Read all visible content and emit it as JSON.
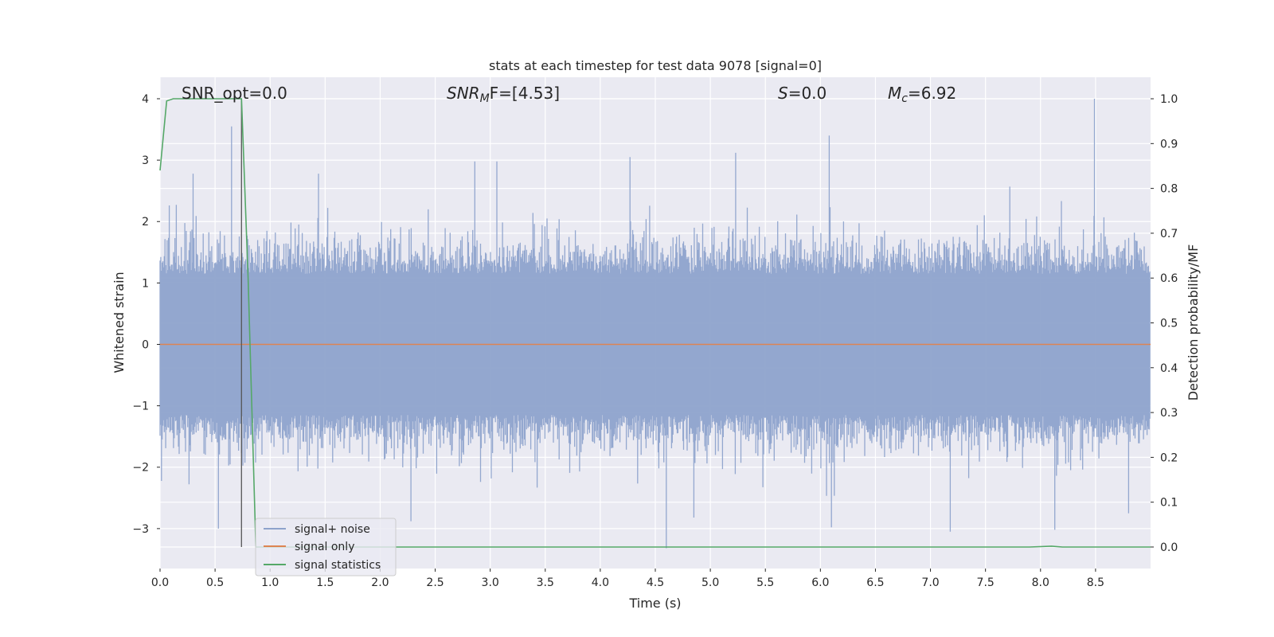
{
  "chart_data": {
    "type": "line",
    "title": "stats at each timestep for test data 9078 [signal=0]",
    "xlabel": "Time (s)",
    "ylabel": "Whitened strain",
    "y2label": "Detection probability/MF",
    "xlim": [
      0.0,
      9.0
    ],
    "ylim": [
      -3.65,
      4.35
    ],
    "y2lim": [
      -0.048,
      1.048
    ],
    "xticks": [
      "0.0",
      "0.5",
      "1.0",
      "1.5",
      "2.0",
      "2.5",
      "3.0",
      "3.5",
      "4.0",
      "4.5",
      "5.0",
      "5.5",
      "6.0",
      "6.5",
      "7.0",
      "7.5",
      "8.0",
      "8.5"
    ],
    "yticks": [
      "−3",
      "−2",
      "−1",
      "0",
      "1",
      "2",
      "3",
      "4"
    ],
    "y2ticks": [
      "0.0",
      "0.1",
      "0.2",
      "0.3",
      "0.4",
      "0.5",
      "0.6",
      "0.7",
      "0.8",
      "0.9",
      "1.0"
    ],
    "grid": true,
    "legend_position": "lower-left",
    "annotations": {
      "snr_opt": "SNR_opt=0.0",
      "snr_mf_base": "SNR",
      "snr_mf_sub": "M",
      "snr_mf_rest": "F=[4.53]",
      "s_label": "S",
      "s_rest": "=0.0",
      "mc_base": "M",
      "mc_sub": "c",
      "mc_rest": "=6.92"
    },
    "marker_x": 0.74,
    "series": [
      {
        "name": "signal+ noise",
        "color": "#8ea3cc",
        "axis": "left",
        "description_points": "dense noise, roughly within ±2, peaks near ±4",
        "spikes": [
          {
            "x": 0.65,
            "y": 3.55
          },
          {
            "x": 0.3,
            "y": 2.78
          },
          {
            "x": 1.44,
            "y": 2.78
          },
          {
            "x": 2.86,
            "y": 2.98
          },
          {
            "x": 3.06,
            "y": 2.98
          },
          {
            "x": 4.27,
            "y": 3.05
          },
          {
            "x": 5.23,
            "y": 3.12
          },
          {
            "x": 6.08,
            "y": 3.4
          },
          {
            "x": 8.49,
            "y": 4.0
          },
          {
            "x": 0.53,
            "y": -3.0
          },
          {
            "x": 2.28,
            "y": -2.88
          },
          {
            "x": 4.6,
            "y": -3.32
          },
          {
            "x": 6.1,
            "y": -2.98
          },
          {
            "x": 7.18,
            "y": -3.05
          },
          {
            "x": 8.13,
            "y": -3.02
          },
          {
            "x": 4.85,
            "y": -2.82
          },
          {
            "x": 8.8,
            "y": -2.75
          }
        ]
      },
      {
        "name": "signal only",
        "color": "#dd8452",
        "axis": "left",
        "x": [
          0.0,
          9.0
        ],
        "y": [
          0.0,
          0.0
        ]
      },
      {
        "name": "signal statistics",
        "color": "#55a868",
        "axis": "right",
        "x": [
          0.0,
          0.06,
          0.12,
          0.3,
          0.5,
          0.7,
          0.74,
          0.8,
          0.87,
          1.0,
          2.0,
          4.0,
          6.0,
          7.9,
          8.1,
          8.2,
          9.0
        ],
        "y": [
          0.84,
          0.995,
          1.0,
          1.0,
          1.0,
          1.0,
          1.0,
          0.6,
          0.0,
          0.0,
          0.0,
          0.0,
          0.0,
          0.0,
          0.002,
          0.0,
          0.0
        ]
      }
    ]
  }
}
